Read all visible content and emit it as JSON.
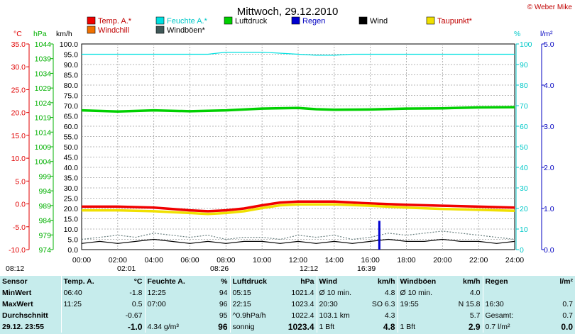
{
  "chart_data": {
    "type": "line",
    "title": "Mittwoch, 29.12.2010",
    "credit": "© Weber Mike",
    "x_ticks": [
      "00:00",
      "02:00",
      "04:00",
      "06:00",
      "08:00",
      "10:00",
      "12:00",
      "14:00",
      "16:00",
      "18:00",
      "20:00",
      "22:00",
      "24:00"
    ],
    "xlim": [
      0,
      24
    ],
    "legend": [
      "Temp. A.*",
      "Feuchte A.*",
      "Luftdruck",
      "Regen",
      "Wind",
      "Taupunkt*",
      "Windchill",
      "Windböen*"
    ],
    "axes": {
      "temp": {
        "unit": "°C",
        "ylim": [
          -10,
          35
        ],
        "ticks": [
          "35.0",
          "30.0",
          "25.0",
          "20.0",
          "15.0",
          "10.0",
          "5.0",
          "0.0",
          "-5.0",
          "-10.0"
        ],
        "color": "#e00000"
      },
      "pressure": {
        "unit": "hPa",
        "ylim": [
          974,
          1044
        ],
        "ticks": [
          "1044",
          "1039",
          "1034",
          "1029",
          "1024",
          "1019",
          "1014",
          "1009",
          "1004",
          "999",
          "994",
          "989",
          "984",
          "979",
          "974"
        ],
        "color": "#00b000"
      },
      "wind": {
        "unit": "km/h",
        "ylim": [
          0,
          100
        ],
        "ticks": [
          "100.0",
          "95.0",
          "90.0",
          "85.0",
          "80.0",
          "75.0",
          "70.0",
          "65.0",
          "60.0",
          "55.0",
          "50.0",
          "45.0",
          "40.0",
          "35.0",
          "30.0",
          "25.0",
          "20.0",
          "15.0",
          "10.0",
          "5.0",
          "0.0"
        ],
        "color": "#000000"
      },
      "humidity": {
        "unit": "%",
        "ylim": [
          0,
          100
        ],
        "ticks": [
          "100",
          "90",
          "80",
          "70",
          "60",
          "50",
          "40",
          "30",
          "20",
          "10",
          "0"
        ],
        "color": "#00c8c8"
      },
      "rain": {
        "unit": "l/m²",
        "ylim": [
          0,
          5
        ],
        "ticks": [
          "5.0",
          "4.0",
          "3.0",
          "2.0",
          "1.0",
          "0.0"
        ],
        "color": "#0000c0"
      }
    },
    "series": [
      {
        "name": "Feuchte A.*",
        "axis": "humidity",
        "color": "#00e0e0",
        "x": [
          0,
          2,
          4,
          6,
          7,
          8,
          10,
          12,
          13,
          14,
          15,
          16,
          17,
          18,
          20,
          22,
          24
        ],
        "y": [
          95,
          95,
          95,
          95,
          95,
          96,
          96,
          95,
          94.5,
          94.5,
          95,
          95,
          95,
          95,
          95,
          95,
          95
        ]
      },
      {
        "name": "Luftdruck",
        "axis": "pressure",
        "color": "#00d000",
        "x": [
          0,
          2,
          4,
          6,
          8,
          10,
          12,
          13,
          14,
          16,
          18,
          20,
          22,
          24
        ],
        "y": [
          1021.4,
          1021.0,
          1021.4,
          1021.1,
          1021.4,
          1022.0,
          1022.2,
          1021.8,
          1021.6,
          1021.7,
          1022.0,
          1022.1,
          1022.4,
          1022.5
        ],
        "style": "thick"
      },
      {
        "name": "Temp. A.*",
        "axis": "temp",
        "color": "#f00000",
        "x": [
          0,
          2,
          4,
          6,
          7,
          8,
          9,
          10,
          11,
          12,
          13,
          14,
          16,
          18,
          20,
          22,
          24
        ],
        "y": [
          -0.6,
          -0.6,
          -0.8,
          -1.4,
          -1.6,
          -1.4,
          -1.0,
          -0.3,
          0.3,
          0.5,
          0.5,
          0.5,
          0.1,
          -0.2,
          -0.4,
          -0.6,
          -0.8
        ],
        "style": "thick"
      },
      {
        "name": "Taupunkt*",
        "axis": "temp",
        "color": "#f0e000",
        "x": [
          0,
          2,
          4,
          6,
          7,
          8,
          9,
          10,
          11,
          12,
          13,
          14,
          16,
          18,
          20,
          22,
          24
        ],
        "y": [
          -1.4,
          -1.4,
          -1.6,
          -2.0,
          -2.2,
          -2.0,
          -1.6,
          -0.9,
          -0.3,
          -0.1,
          -0.1,
          -0.1,
          -0.4,
          -0.8,
          -1.1,
          -1.3,
          -1.5
        ],
        "style": "thick"
      },
      {
        "name": "Windböen*",
        "axis": "wind",
        "color": "#6a8080",
        "x": [
          0,
          1,
          2,
          3,
          4,
          5,
          6,
          7,
          8,
          9,
          10,
          11,
          12,
          13,
          14,
          15,
          16,
          17,
          18,
          19,
          20,
          21,
          22,
          23,
          24
        ],
        "y": [
          5,
          6,
          7,
          6,
          8,
          7,
          6,
          7,
          5,
          6,
          6,
          5,
          7,
          6,
          7,
          5,
          6,
          8,
          7,
          8,
          9,
          8,
          7,
          6,
          5
        ],
        "style": "dotted"
      },
      {
        "name": "Wind",
        "axis": "wind",
        "color": "#000000",
        "x": [
          0,
          1,
          2,
          3,
          4,
          5,
          6,
          7,
          8,
          9,
          10,
          11,
          12,
          13,
          14,
          15,
          16,
          17,
          18,
          19,
          20,
          21,
          22,
          23,
          24
        ],
        "y": [
          3,
          4,
          3,
          4,
          5,
          4,
          3,
          4,
          3,
          4,
          4,
          3,
          4,
          3,
          4,
          3,
          4,
          5,
          4,
          4,
          5,
          4,
          4,
          3,
          4
        ]
      },
      {
        "name": "Regen",
        "axis": "rain",
        "color": "#0000d0",
        "x": [
          16.5
        ],
        "y": [
          0.7
        ],
        "style": "bar"
      }
    ],
    "time_markers": [
      "08:12",
      "02:01",
      "08:26",
      "12:12",
      "16:39"
    ]
  },
  "stats": {
    "header": [
      "Sensor",
      "Temp. A.",
      "°C",
      "Feuchte A.",
      "%",
      "Luftdruck",
      "hPa",
      "Wind",
      "km/h",
      "Windböen",
      "km/h",
      "Regen",
      "l/m²"
    ],
    "rows": [
      {
        "label": "MinWert",
        "cells": [
          "06:40",
          "-1.8",
          "12:25",
          "94",
          "05:15",
          "1021.4",
          "Ø 10 min.",
          "4.8",
          "Ø 10 min.",
          "4.0",
          "",
          ""
        ]
      },
      {
        "label": "MaxWert",
        "cells": [
          "11:25",
          "0.5",
          "07:00",
          "96",
          "22:15",
          "1023.4",
          "20:30",
          "SO 6.3",
          "19:55",
          "N 15.8",
          "16:30",
          "0.7"
        ]
      },
      {
        "label": "Durchschnitt",
        "cells": [
          "",
          "-0.67",
          "",
          "95",
          "^0.9hPa/h",
          "1022.4",
          "103.1 km",
          "4.3",
          "",
          "5.7",
          "Gesamt:",
          "0.7"
        ]
      },
      {
        "label": "29.12. 23:55",
        "cells": [
          "",
          "-1.0",
          "4.34 g/m³",
          "96",
          "sonnig",
          "1023.4",
          "1 Bft",
          "4.8",
          "1 Bft",
          "2.9",
          "0.7 l/m²",
          "0.0"
        ]
      }
    ]
  },
  "colors": {
    "panel": "#c6ecec",
    "plot_bg": "#ffffff",
    "grid": "#a0a0a0"
  }
}
